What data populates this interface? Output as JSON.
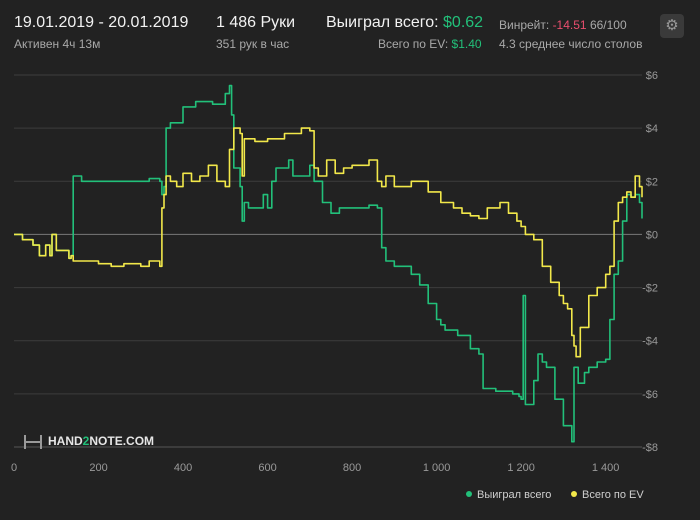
{
  "header": {
    "date_range": "19.01.2019 - 20.01.2019",
    "active": "Активен 4ч 13м",
    "hands": "1 486 Руки",
    "hands_per_hour": "351 рук в час",
    "won_label": "Выиграл всего:",
    "won_value": "$0.62",
    "ev_label": "Всего по EV:",
    "ev_value": "$1.40",
    "winrate_label": "Винрейт:",
    "winrate_value": "-14.51",
    "winrate_hands": "66/100",
    "avg_tables": "4.3 среднее число столов"
  },
  "logo": {
    "part1": "HAND",
    "part2": "2",
    "part3": "NOTE.COM"
  },
  "colors": {
    "won": "#22c07a",
    "ev": "#f2e84a",
    "background": "#222222",
    "grid": "#3d3d3d",
    "zero_line": "#7a7a7a",
    "winrate": "#e94e6e"
  },
  "icons": {
    "settings": "gear-icon"
  },
  "chart_data": {
    "type": "line",
    "xlim": [
      0,
      1486
    ],
    "ylim": [
      -8,
      6
    ],
    "x_ticks": [
      0,
      200,
      400,
      600,
      800,
      1000,
      1200,
      1400
    ],
    "x_tick_labels": [
      "0",
      "200",
      "400",
      "600",
      "800",
      "1 000",
      "1 200",
      "1 400"
    ],
    "y_ticks": [
      6,
      4,
      2,
      0,
      -2,
      -4,
      -6,
      -8
    ],
    "y_tick_labels": [
      "$6",
      "$4",
      "$2",
      "$0",
      "-$2",
      "-$4",
      "-$6",
      "-$8"
    ],
    "grid": true,
    "legend_position": "bottom-right",
    "series": [
      {
        "name": "Выиграл всего",
        "color": "#22c07a",
        "x": [
          0,
          20,
          45,
          60,
          75,
          85,
          90,
          100,
          130,
          135,
          140,
          160,
          200,
          260,
          320,
          345,
          350,
          355,
          360,
          370,
          400,
          430,
          470,
          500,
          510,
          515,
          520,
          535,
          540,
          545,
          555,
          570,
          590,
          600,
          610,
          620,
          650,
          660,
          680,
          700,
          710,
          730,
          750,
          770,
          800,
          840,
          860,
          870,
          880,
          900,
          940,
          960,
          980,
          1000,
          1010,
          1020,
          1050,
          1080,
          1100,
          1110,
          1140,
          1180,
          1195,
          1200,
          1205,
          1210,
          1230,
          1240,
          1250,
          1260,
          1280,
          1300,
          1320,
          1325,
          1335,
          1350,
          1360,
          1380,
          1400,
          1410,
          1420,
          1430,
          1440,
          1450,
          1460,
          1470,
          1480,
          1486
        ],
        "y": [
          0,
          -0.2,
          -0.4,
          -0.8,
          -0.4,
          -0.8,
          0,
          -0.6,
          -0.9,
          -0.8,
          2.2,
          2.0,
          2.0,
          2.0,
          2.1,
          2.0,
          1.5,
          1.8,
          4.0,
          4.2,
          4.8,
          5.0,
          4.9,
          5.3,
          5.6,
          4.5,
          2.5,
          1.8,
          0.5,
          1.2,
          1.0,
          1.0,
          1.5,
          1.0,
          2.0,
          2.5,
          2.8,
          2.2,
          2.2,
          2.6,
          2.0,
          1.2,
          0.8,
          1.0,
          1.0,
          1.1,
          1.0,
          -0.5,
          -1.0,
          -1.2,
          -1.5,
          -1.9,
          -2.6,
          -3.2,
          -3.4,
          -3.6,
          -3.8,
          -4.3,
          -4.5,
          -5.8,
          -5.9,
          -6.0,
          -6.1,
          -6.2,
          -2.3,
          -6.4,
          -5.5,
          -4.5,
          -4.8,
          -5.0,
          -6.2,
          -7.2,
          -7.8,
          -5.0,
          -5.6,
          -5.2,
          -5.0,
          -4.8,
          -4.7,
          -3.2,
          -1.5,
          -1.0,
          0.5,
          1.5,
          1.4,
          1.5,
          1.2,
          0.6
        ]
      },
      {
        "name": "Всего по EV",
        "color": "#f2e84a",
        "x": [
          0,
          20,
          45,
          60,
          75,
          85,
          90,
          100,
          130,
          135,
          140,
          170,
          200,
          230,
          260,
          300,
          320,
          345,
          350,
          355,
          360,
          370,
          385,
          400,
          420,
          440,
          460,
          480,
          500,
          510,
          520,
          535,
          540,
          545,
          555,
          570,
          600,
          640,
          680,
          700,
          710,
          720,
          740,
          760,
          780,
          800,
          840,
          860,
          870,
          880,
          900,
          940,
          980,
          1010,
          1040,
          1060,
          1080,
          1100,
          1120,
          1150,
          1170,
          1190,
          1200,
          1210,
          1230,
          1250,
          1270,
          1290,
          1300,
          1310,
          1320,
          1325,
          1330,
          1340,
          1360,
          1380,
          1400,
          1410,
          1420,
          1430,
          1440,
          1450,
          1460,
          1470,
          1480,
          1486
        ],
        "y": [
          0,
          -0.2,
          -0.4,
          -0.8,
          -0.4,
          -0.8,
          0,
          -0.6,
          -0.9,
          -0.8,
          -1.0,
          -1.0,
          -1.1,
          -1.2,
          -1.1,
          -1.2,
          -1.0,
          -1.2,
          1.0,
          1.5,
          2.2,
          2.0,
          1.8,
          2.3,
          2.0,
          2.2,
          2.6,
          2.0,
          1.8,
          3.2,
          4.0,
          3.8,
          2.2,
          3.6,
          3.6,
          3.5,
          3.6,
          3.8,
          4.0,
          3.9,
          2.5,
          2.2,
          2.8,
          2.3,
          2.5,
          2.6,
          2.8,
          2.0,
          1.8,
          2.2,
          1.8,
          2.0,
          1.6,
          1.2,
          1.0,
          0.8,
          0.7,
          0.6,
          1.0,
          1.2,
          0.8,
          0.5,
          0.3,
          0.0,
          -0.2,
          -1.2,
          -1.8,
          -2.3,
          -2.6,
          -2.8,
          -3.8,
          -4.2,
          -4.6,
          -3.5,
          -2.3,
          -2.0,
          -1.5,
          -1.2,
          0.5,
          1.2,
          1.4,
          1.6,
          1.4,
          2.2,
          1.8,
          1.4
        ]
      }
    ]
  }
}
